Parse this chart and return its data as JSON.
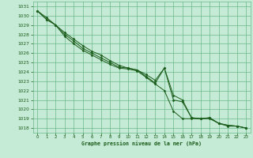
{
  "title": "Graphe pression niveau de la mer (hPa)",
  "background_color": "#c5ead5",
  "grid_color": "#6ab88a",
  "line_color": "#1a5c1a",
  "marker_color": "#1a5c1a",
  "xlim": [
    -0.5,
    23.5
  ],
  "ylim": [
    1017.5,
    1031.5
  ],
  "yticks": [
    1018,
    1019,
    1020,
    1021,
    1022,
    1023,
    1024,
    1025,
    1026,
    1027,
    1028,
    1029,
    1030,
    1031
  ],
  "xticks": [
    0,
    1,
    2,
    3,
    4,
    5,
    6,
    7,
    8,
    9,
    10,
    11,
    12,
    13,
    14,
    15,
    16,
    17,
    18,
    19,
    20,
    21,
    22,
    23
  ],
  "series": [
    [
      1030.5,
      1029.8,
      1029.0,
      1028.2,
      1027.5,
      1026.8,
      1026.2,
      1025.8,
      1025.2,
      1024.7,
      1024.4,
      1024.2,
      1023.7,
      1023.1,
      1024.4,
      1021.0,
      1020.8,
      1019.1,
      1019.0,
      1019.1,
      1018.5,
      1018.2,
      1018.2,
      1018.0
    ],
    [
      1030.5,
      1029.6,
      1029.0,
      1028.0,
      1027.3,
      1026.5,
      1026.0,
      1025.5,
      1025.0,
      1024.5,
      1024.4,
      1024.2,
      1023.5,
      1022.8,
      1024.4,
      1021.5,
      1021.0,
      1019.1,
      1019.0,
      1019.0,
      1018.5,
      1018.3,
      1018.2,
      1018.0
    ],
    [
      1030.5,
      1029.6,
      1029.0,
      1027.8,
      1027.0,
      1026.3,
      1025.8,
      1025.3,
      1024.8,
      1024.4,
      1024.3,
      1024.1,
      1023.4,
      1022.7,
      1022.0,
      1019.8,
      1019.0,
      1019.0,
      1019.0,
      1019.1,
      1018.5,
      1018.3,
      1018.2,
      1018.0
    ]
  ]
}
